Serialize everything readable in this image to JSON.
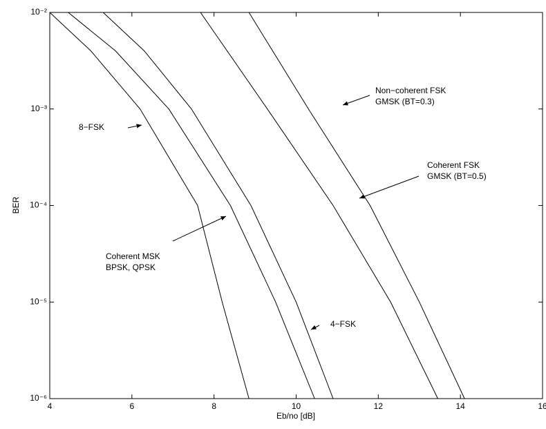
{
  "chart_data": {
    "type": "line",
    "xlabel": "Eb/no [dB]",
    "ylabel": "BER",
    "xlim": [
      4,
      16
    ],
    "xticks": [
      4,
      6,
      8,
      10,
      12,
      14,
      16
    ],
    "ylim": [
      1e-06,
      0.01
    ],
    "ylog": true,
    "yticks": [
      {
        "value": 1e-06,
        "label": "10⁻⁶"
      },
      {
        "value": 1e-05,
        "label": "10⁻⁵"
      },
      {
        "value": 0.0001,
        "label": "10⁻⁴"
      },
      {
        "value": 0.001,
        "label": "10⁻³"
      },
      {
        "value": 0.01,
        "label": "10⁻²"
      }
    ],
    "grid": false,
    "series": [
      {
        "color": "#000000",
        "x": [
          4,
          5,
          6.2,
          7.6,
          8.2,
          8.85
        ],
        "values": [
          0.01,
          0.004,
          0.001,
          0.0001,
          1e-05,
          1e-06
        ]
      },
      {
        "color": "#000000",
        "x": [
          4.45,
          5.6,
          6.9,
          8.4,
          9.5,
          10.45
        ],
        "values": [
          0.01,
          0.004,
          0.001,
          0.0001,
          1e-05,
          1e-06
        ]
      },
      {
        "color": "#000000",
        "x": [
          5.3,
          6.3,
          7.45,
          8.9,
          10.0,
          10.9
        ],
        "values": [
          0.01,
          0.004,
          0.001,
          0.0001,
          1e-05,
          1e-06
        ]
      },
      {
        "color": "#000000",
        "x": [
          7.67,
          9.3,
          10.9,
          12.3,
          13.45
        ],
        "values": [
          0.01,
          0.001,
          0.0001,
          1e-05,
          1e-06
        ]
      },
      {
        "color": "#000000",
        "x": [
          8.85,
          10.3,
          11.8,
          13.0,
          14.1
        ],
        "values": [
          0.01,
          0.001,
          0.0001,
          1e-05,
          1e-06
        ]
      }
    ],
    "annotations": [
      {
        "lines": [
          "8−FSK"
        ]
      },
      {
        "lines": [
          "4−FSK"
        ]
      },
      {
        "lines": [
          "Coherent MSK",
          "BPSK, QPSK"
        ]
      },
      {
        "lines": [
          "Coherent FSK",
          "GMSK (BT=0.5)"
        ]
      },
      {
        "lines": [
          "Non−coherent FSK",
          "GMSK (BT=0.3)"
        ]
      }
    ]
  }
}
